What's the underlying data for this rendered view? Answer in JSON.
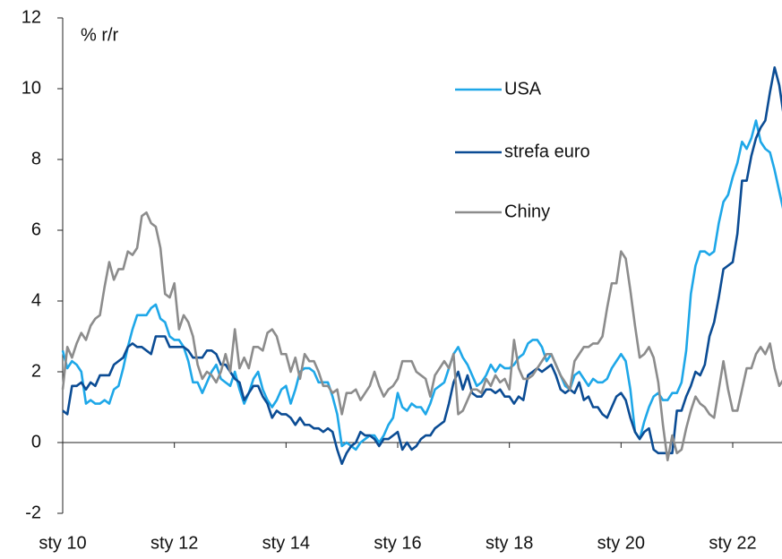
{
  "chart_data": {
    "type": "line",
    "y_label": "% r/r",
    "categories": [
      "sty 10",
      null,
      null,
      null,
      null,
      null,
      null,
      null,
      null,
      null,
      null,
      null,
      null,
      null,
      null,
      null,
      null,
      null,
      null,
      null,
      null,
      null,
      null,
      null,
      "sty 12",
      null,
      null,
      null,
      null,
      null,
      null,
      null,
      null,
      null,
      null,
      null,
      null,
      null,
      null,
      null,
      null,
      null,
      null,
      null,
      null,
      null,
      null,
      null,
      "sty 14",
      null,
      null,
      null,
      null,
      null,
      null,
      null,
      null,
      null,
      null,
      null,
      null,
      null,
      null,
      null,
      null,
      null,
      null,
      null,
      null,
      null,
      null,
      null,
      "sty 16",
      null,
      null,
      null,
      null,
      null,
      null,
      null,
      null,
      null,
      null,
      null,
      null,
      null,
      null,
      null,
      null,
      null,
      null,
      null,
      null,
      null,
      null,
      null,
      "sty 18",
      null,
      null,
      null,
      null,
      null,
      null,
      null,
      null,
      null,
      null,
      null,
      null,
      null,
      null,
      null,
      null,
      null,
      null,
      null,
      null,
      null,
      null,
      null,
      "sty 20",
      null,
      null,
      null,
      null,
      null,
      null,
      null,
      null,
      null,
      null,
      null,
      null,
      null,
      null,
      null,
      null,
      null,
      null,
      null,
      null,
      null,
      null,
      null,
      "sty 22",
      null,
      null,
      null,
      null,
      null,
      null,
      null,
      null,
      null,
      null,
      null
    ],
    "series": [
      {
        "name": "USA",
        "color": "#1ea7e8",
        "values": [
          2.6,
          2.1,
          2.3,
          2.2,
          2.0,
          1.1,
          1.2,
          1.1,
          1.1,
          1.2,
          1.1,
          1.5,
          1.6,
          2.1,
          2.7,
          3.2,
          3.6,
          3.6,
          3.6,
          3.8,
          3.9,
          3.5,
          3.4,
          3.0,
          2.9,
          2.9,
          2.7,
          2.3,
          1.7,
          1.7,
          1.4,
          1.7,
          2.0,
          2.2,
          1.8,
          1.7,
          1.6,
          2.0,
          1.5,
          1.1,
          1.4,
          1.8,
          2.0,
          1.5,
          1.2,
          1.0,
          1.2,
          1.5,
          1.6,
          1.1,
          1.5,
          2.0,
          2.1,
          2.1,
          2.0,
          1.7,
          1.7,
          1.7,
          1.3,
          0.8,
          -0.1,
          0.0,
          -0.1,
          -0.2,
          0.0,
          0.1,
          0.2,
          0.2,
          0.0,
          0.2,
          0.5,
          0.7,
          1.4,
          1.0,
          0.9,
          1.1,
          1.0,
          1.0,
          0.8,
          1.1,
          1.5,
          1.6,
          1.7,
          2.1,
          2.5,
          2.7,
          2.4,
          2.2,
          1.9,
          1.6,
          1.7,
          1.9,
          2.2,
          2.0,
          2.2,
          2.1,
          2.1,
          2.2,
          2.4,
          2.5,
          2.8,
          2.9,
          2.9,
          2.7,
          2.3,
          2.5,
          2.2,
          1.9,
          1.6,
          1.5,
          1.9,
          2.0,
          1.8,
          1.6,
          1.8,
          1.7,
          1.7,
          1.8,
          2.1,
          2.3,
          2.5,
          2.3,
          1.5,
          0.3,
          0.1,
          0.6,
          1.0,
          1.3,
          1.4,
          1.2,
          1.2,
          1.4,
          1.4,
          1.7,
          2.6,
          4.2,
          5.0,
          5.4,
          5.4,
          5.3,
          5.4,
          6.2,
          6.8,
          7.0,
          7.5,
          7.9,
          8.5,
          8.3,
          8.6,
          9.1,
          8.5,
          8.3,
          8.2,
          7.7,
          7.1,
          6.5
        ]
      },
      {
        "name": "strefa euro",
        "color": "#0b4c94",
        "values": [
          0.9,
          0.8,
          1.6,
          1.6,
          1.7,
          1.5,
          1.7,
          1.6,
          1.9,
          1.9,
          1.9,
          2.2,
          2.3,
          2.4,
          2.7,
          2.8,
          2.7,
          2.7,
          2.6,
          2.5,
          3.0,
          3.0,
          3.0,
          2.7,
          2.7,
          2.7,
          2.7,
          2.6,
          2.4,
          2.4,
          2.4,
          2.6,
          2.6,
          2.5,
          2.2,
          2.2,
          2.0,
          1.8,
          1.7,
          1.2,
          1.4,
          1.6,
          1.6,
          1.3,
          1.1,
          0.7,
          0.9,
          0.8,
          0.8,
          0.7,
          0.5,
          0.7,
          0.5,
          0.5,
          0.4,
          0.4,
          0.3,
          0.4,
          0.3,
          -0.2,
          -0.6,
          -0.3,
          -0.1,
          0.0,
          0.3,
          0.2,
          0.2,
          0.1,
          -0.1,
          0.1,
          0.1,
          0.2,
          0.3,
          -0.2,
          0.0,
          -0.2,
          -0.1,
          0.1,
          0.2,
          0.2,
          0.4,
          0.5,
          0.6,
          1.1,
          1.7,
          2.0,
          1.5,
          1.9,
          1.4,
          1.3,
          1.3,
          1.5,
          1.5,
          1.4,
          1.5,
          1.3,
          1.3,
          1.1,
          1.3,
          1.2,
          1.9,
          2.0,
          2.1,
          2.0,
          2.1,
          2.2,
          1.9,
          1.5,
          1.4,
          1.5,
          1.4,
          1.7,
          1.2,
          1.3,
          1.0,
          1.0,
          0.8,
          0.7,
          1.0,
          1.3,
          1.4,
          1.2,
          0.7,
          0.3,
          0.1,
          0.3,
          0.4,
          -0.2,
          -0.3,
          -0.3,
          -0.3,
          -0.3,
          0.9,
          0.9,
          1.3,
          1.6,
          2.0,
          1.9,
          2.2,
          3.0,
          3.4,
          4.1,
          4.9,
          5.0,
          5.1,
          5.9,
          7.4,
          7.4,
          8.1,
          8.6,
          8.9,
          9.1,
          9.9,
          10.6,
          10.1,
          9.2
        ]
      },
      {
        "name": "Chiny",
        "color": "#8c8c8c",
        "values": [
          1.5,
          2.7,
          2.4,
          2.8,
          3.1,
          2.9,
          3.3,
          3.5,
          3.6,
          4.4,
          5.1,
          4.6,
          4.9,
          4.9,
          5.4,
          5.3,
          5.5,
          6.4,
          6.5,
          6.2,
          6.1,
          5.5,
          4.2,
          4.1,
          4.5,
          3.2,
          3.6,
          3.4,
          3.0,
          2.2,
          1.8,
          2.0,
          1.9,
          1.7,
          2.0,
          2.5,
          2.0,
          3.2,
          2.1,
          2.4,
          2.1,
          2.7,
          2.7,
          2.6,
          3.1,
          3.2,
          3.0,
          2.5,
          2.5,
          2.0,
          2.4,
          1.8,
          2.5,
          2.3,
          2.3,
          2.0,
          1.6,
          1.6,
          1.4,
          1.5,
          0.8,
          1.4,
          1.4,
          1.5,
          1.2,
          1.4,
          1.6,
          2.0,
          1.6,
          1.3,
          1.5,
          1.6,
          1.8,
          2.3,
          2.3,
          2.3,
          2.0,
          1.9,
          1.8,
          1.3,
          1.9,
          2.1,
          2.3,
          2.1,
          2.5,
          0.8,
          0.9,
          1.2,
          1.5,
          1.5,
          1.4,
          1.8,
          1.6,
          1.9,
          1.7,
          1.8,
          1.5,
          2.9,
          2.1,
          1.8,
          1.8,
          1.9,
          2.1,
          2.3,
          2.5,
          2.5,
          2.2,
          1.9,
          1.7,
          1.5,
          2.3,
          2.5,
          2.7,
          2.7,
          2.8,
          2.8,
          3.0,
          3.8,
          4.5,
          4.5,
          5.4,
          5.2,
          4.3,
          3.3,
          2.4,
          2.5,
          2.7,
          2.4,
          1.7,
          0.5,
          -0.5,
          0.2,
          -0.3,
          -0.2,
          0.4,
          0.9,
          1.3,
          1.1,
          1.0,
          0.8,
          0.7,
          1.5,
          2.3,
          1.5,
          0.9,
          0.9,
          1.5,
          2.1,
          2.1,
          2.5,
          2.7,
          2.5,
          2.8,
          2.1,
          1.6,
          1.8
        ]
      }
    ],
    "ylim": [
      -2,
      12
    ],
    "yticks": [
      -2,
      0,
      2,
      4,
      6,
      8,
      10,
      12
    ],
    "grid": false
  }
}
